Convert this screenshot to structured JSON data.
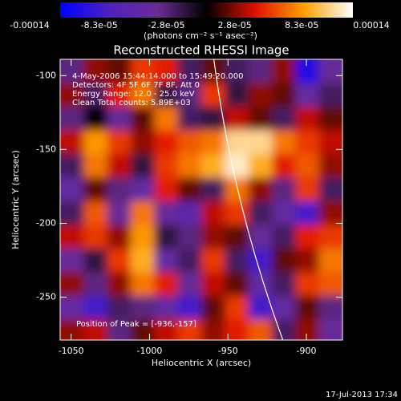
{
  "chart_data": {
    "type": "heatmap",
    "title": "Reconstructed RHESSI Image",
    "xlabel": "Heliocentric X (arcsec)",
    "ylabel": "Heliocentric Y (arcsec)",
    "colorbar_label": "(photons cm⁻² s⁻¹ asec⁻²)",
    "annotations": [
      "4-May-2006 15:44:14.000 to 15:49:20.000",
      "Detectors: 4F 5F 6F 7F 8F, Att 0",
      "Energy Range: 12.0 - 25.0 keV",
      "Clean     Total counts: 5.89E+03"
    ],
    "peak_label": "Position of Peak = [-936,-157]",
    "footer": "17-Jul-2013 17:34",
    "colormap": [
      "#0000ff",
      "#5020c0",
      "#6a2c95",
      "#000000",
      "#e01000",
      "#ffa000",
      "#ffffff"
    ],
    "zlim": [
      -0.00014,
      0.00014
    ],
    "zticks": [
      {
        "value": -0.00014,
        "label": "-0.00014"
      },
      {
        "value": -8.3e-05,
        "label": "-8.3e-05"
      },
      {
        "value": -2.8e-05,
        "label": "-2.8e-05"
      },
      {
        "value": 2.8e-05,
        "label": "2.8e-05"
      },
      {
        "value": 8.3e-05,
        "label": "8.3e-05"
      },
      {
        "value": 0.00014,
        "label": "0.00014"
      }
    ],
    "xlim": [
      -1057,
      -877
    ],
    "ylim": [
      -279,
      -89
    ],
    "xticks": [
      -1050,
      -1000,
      -950,
      -900
    ],
    "yticks": [
      -250,
      -200,
      -150,
      -100
    ],
    "x": [
      -1049.5,
      -1034.5,
      -1019.5,
      -1004.5,
      -989.5,
      -974.5,
      -959.5,
      -944.5,
      -929.5,
      -914.5,
      -899.5,
      -884.5
    ],
    "y": [
      -97,
      -113,
      -129,
      -145,
      -161,
      -177,
      -193,
      -209,
      -225,
      -241,
      -257,
      -273
    ],
    "z": [
      [
        -4e-05,
        3e-05,
        2e-05,
        6e-05,
        5e-05,
        -3e-05,
        2e-05,
        -3e-05,
        -4e-05,
        3e-05,
        -0.00012,
        -5e-05
      ],
      [
        3e-05,
        -3e-05,
        5e-05,
        8e-05,
        -2e-05,
        -4e-05,
        6e-05,
        -2e-05,
        3e-05,
        2e-05,
        -6e-05,
        -3e-05
      ],
      [
        -4e-05,
        0,
        -5e-05,
        2e-05,
        8e-05,
        -3e-05,
        -2e-05,
        4e-05,
        2e-05,
        -3e-05,
        4e-05,
        2e-05
      ],
      [
        4e-05,
        9e-05,
        6e-05,
        3e-05,
        5e-05,
        7e-05,
        8e-05,
        0.00012,
        0.00012,
        8e-05,
        6e-05,
        4e-05
      ],
      [
        -3e-05,
        8e-05,
        4e-05,
        -2e-05,
        6e-05,
        8e-05,
        0.0001,
        0.00013,
        0.0001,
        5e-05,
        7e-05,
        3e-05
      ],
      [
        -6e-05,
        2e-05,
        -4e-05,
        -6e-05,
        5e-05,
        2e-05,
        -3e-05,
        8e-05,
        3e-05,
        -4e-05,
        6e-05,
        -3e-05
      ],
      [
        -3e-05,
        7e-05,
        -5e-05,
        8e-05,
        -5e-05,
        -7e-05,
        4e-05,
        6e-05,
        -3e-05,
        -6e-05,
        -0.0001,
        3e-05
      ],
      [
        4e-05,
        6e-05,
        3e-05,
        9e-05,
        -2e-05,
        -4e-05,
        3e-05,
        2e-05,
        -5e-05,
        -3e-05,
        5e-05,
        6e-05
      ],
      [
        -5e-05,
        -2e-05,
        6e-05,
        0.0001,
        -6e-05,
        -3e-05,
        6e-05,
        -3e-05,
        -0.0001,
        2e-05,
        3e-05,
        8e-05
      ],
      [
        3e-05,
        -4e-05,
        3e-05,
        8e-05,
        5e-05,
        -5e-05,
        4e-05,
        2e-05,
        -6e-05,
        -3e-05,
        6e-05,
        7e-05
      ],
      [
        -6e-05,
        -0.0001,
        -3e-05,
        -4e-05,
        -6e-05,
        -0.0001,
        2e-05,
        6e-05,
        -0.0001,
        -6e-05,
        2e-05,
        -4e-05
      ],
      [
        3e-05,
        4e-05,
        -4e-05,
        2e-05,
        4e-05,
        6e-05,
        3e-05,
        5e-05,
        7e-05,
        -3e-05,
        3e-05,
        -5e-05
      ]
    ],
    "limb": {
      "x": [
        -959,
        -942,
        -915
      ],
      "y": [
        -89,
        -185,
        -279
      ]
    }
  }
}
